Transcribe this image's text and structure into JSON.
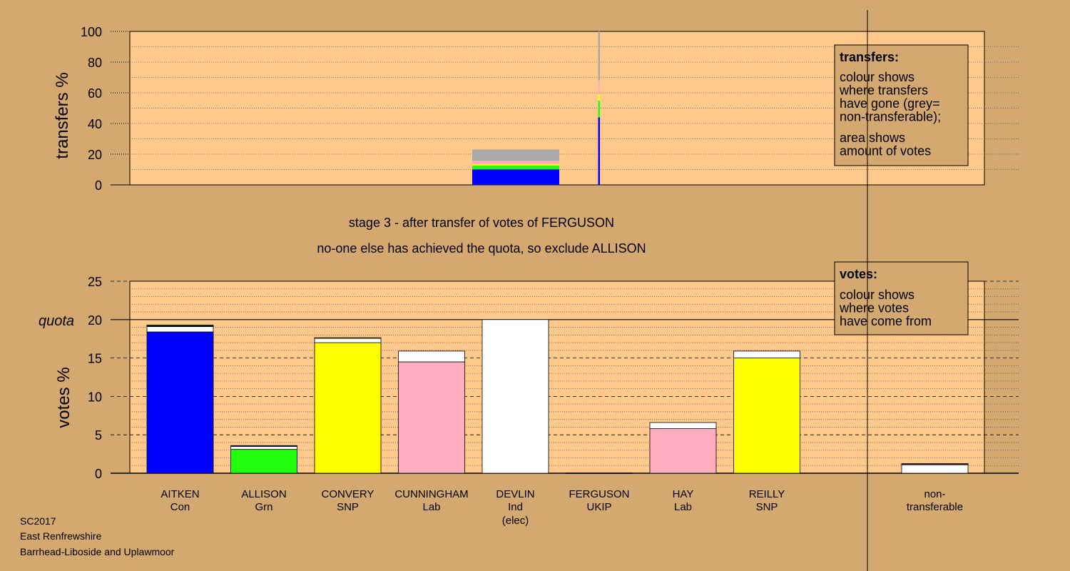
{
  "chart_data": [
    {
      "type": "bar",
      "name": "transfers",
      "ylabel": "transfers %",
      "ylim": [
        0,
        100
      ],
      "yticks": [
        0,
        20,
        40,
        60,
        80,
        100
      ],
      "grid": true,
      "transfer_breakdown_percent": [
        {
          "to": "Con",
          "color": "#0000ff",
          "value": 44
        },
        {
          "to": "Grn",
          "color": "#22ff11",
          "value": 11
        },
        {
          "to": "SNP",
          "color": "#ffff00",
          "value": 4
        },
        {
          "to": "Lab",
          "color": "#ffaec0",
          "value": 9
        },
        {
          "to": "non-transferable",
          "color": "#aaaaaa",
          "value": 32
        }
      ],
      "source_votes_share_percent": 23,
      "source_candidate": "FERGUSON",
      "legend": {
        "position": "top-right",
        "title": "transfers:",
        "lines1": [
          "colour shows",
          "where transfers",
          "have gone (grey=",
          "non-transferable);"
        ],
        "lines2": [
          "area shows",
          "amount of votes"
        ]
      }
    },
    {
      "type": "bar",
      "name": "votes",
      "ylabel": "votes %",
      "ylim": [
        0,
        25
      ],
      "yticks": [
        0,
        5,
        10,
        15,
        20,
        25
      ],
      "quota": 20,
      "quota_label": "quota",
      "grid": true,
      "candidates": [
        {
          "name": "AITKEN",
          "party": "Con",
          "extra": "",
          "segments": [
            {
              "color": "#0000ff",
              "value": 18.4
            },
            {
              "color": "#ffffff",
              "value": 0.7
            },
            {
              "color": "#0000ff",
              "value": 0.1
            },
            {
              "color": "#22ff11",
              "value": 0.1
            }
          ]
        },
        {
          "name": "ALLISON",
          "party": "Grn",
          "extra": "",
          "segments": [
            {
              "color": "#22ff11",
              "value": 3.1
            },
            {
              "color": "#ffffff",
              "value": 0.4
            },
            {
              "color": "#0000ff",
              "value": 0.1
            }
          ]
        },
        {
          "name": "CONVERY",
          "party": "SNP",
          "extra": "",
          "segments": [
            {
              "color": "#ffff00",
              "value": 17.0
            },
            {
              "color": "#ffffff",
              "value": 0.6
            },
            {
              "color": "#ffff00",
              "value": 0.05
            }
          ]
        },
        {
          "name": "CUNNINGHAM",
          "party": "Lab",
          "extra": "",
          "segments": [
            {
              "color": "#ffaec0",
              "value": 14.5
            },
            {
              "color": "#ffffff",
              "value": 1.4
            }
          ]
        },
        {
          "name": "DEVLIN",
          "party": "Ind",
          "extra": "(elec)",
          "segments": [
            {
              "color": "#ffffff",
              "value": 20.0
            }
          ]
        },
        {
          "name": "FERGUSON",
          "party": "UKIP",
          "extra": "",
          "segments": [
            {
              "color": "#888888",
              "value": 0.05
            }
          ]
        },
        {
          "name": "HAY",
          "party": "Lab",
          "extra": "",
          "segments": [
            {
              "color": "#ffaec0",
              "value": 5.8
            },
            {
              "color": "#ffffff",
              "value": 0.8
            }
          ]
        },
        {
          "name": "REILLY",
          "party": "SNP",
          "extra": "",
          "segments": [
            {
              "color": "#ffff00",
              "value": 15.0
            },
            {
              "color": "#ffffff",
              "value": 0.9
            }
          ]
        }
      ],
      "non_transferable": {
        "label1": "non-",
        "label2": "transferable",
        "segments": [
          {
            "color": "#ffffff",
            "value": 1.1
          },
          {
            "color": "#0000ff",
            "value": 0.1
          },
          {
            "color": "#ffaec0",
            "value": 0.05
          }
        ]
      },
      "legend": {
        "position": "top-right",
        "title": "votes:",
        "lines": [
          "colour shows",
          "where votes",
          "have come from"
        ]
      }
    }
  ],
  "stage_text": "stage 3 - after transfer of votes of FERGUSON",
  "action_text": "no-one else has achieved the quota, so exclude ALLISON",
  "footer": [
    "SC2017",
    "East Renfrewshire",
    "Barrhead-Liboside and Uplawmoor"
  ],
  "colors": {
    "background": "#d4a971",
    "plot": "#ffc98c",
    "border": "#000000"
  }
}
